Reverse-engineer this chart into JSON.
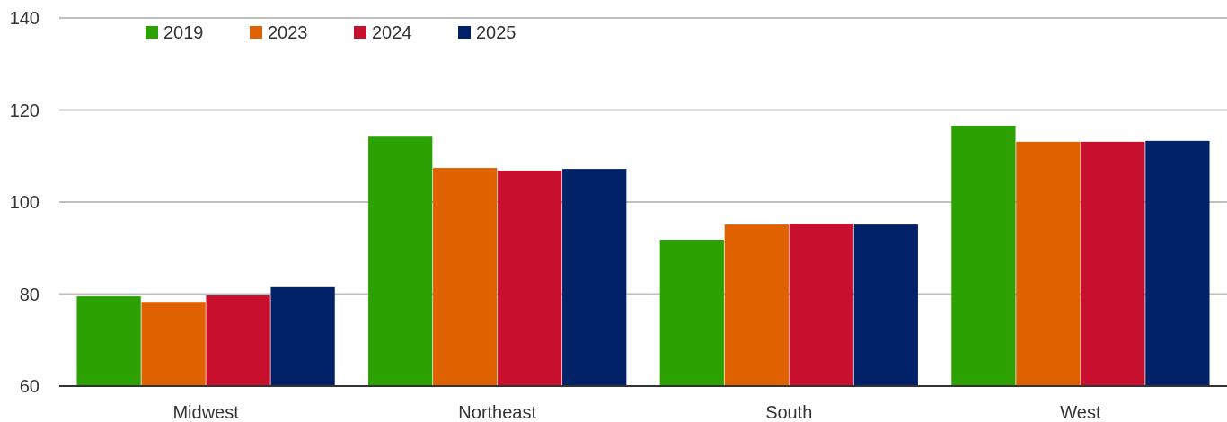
{
  "chart_data": {
    "type": "bar",
    "categories": [
      "Midwest",
      "Northeast",
      "South",
      "West"
    ],
    "series": [
      {
        "name": "2019",
        "color": "#2ca102",
        "values": [
          79.5,
          114.2,
          91.8,
          116.6
        ]
      },
      {
        "name": "2023",
        "color": "#e06100",
        "values": [
          78.3,
          107.4,
          95.1,
          113.1
        ]
      },
      {
        "name": "2024",
        "color": "#c8102e",
        "values": [
          79.7,
          106.8,
          95.3,
          113.1
        ]
      },
      {
        "name": "2025",
        "color": "#012169",
        "values": [
          81.5,
          107.2,
          95.1,
          113.3
        ]
      }
    ],
    "ylim": [
      60,
      140
    ],
    "yticks": [
      60,
      80,
      100,
      120,
      140
    ],
    "grid": "y",
    "legend": "top left"
  }
}
